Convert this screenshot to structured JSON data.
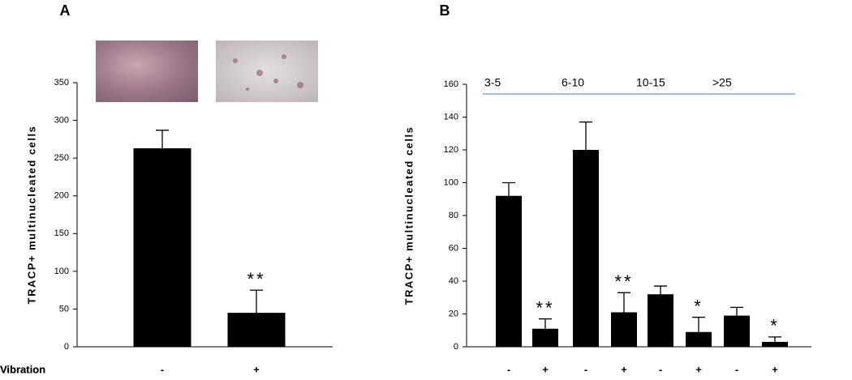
{
  "chart_data": [
    {
      "type": "bar",
      "panel": "A",
      "y_label": "TRACP+ multinucleated cells",
      "x_row_label": "Vibration",
      "categories": [
        "-",
        "+"
      ],
      "values": [
        263,
        45
      ],
      "errors": [
        24,
        30
      ],
      "annotations": [
        null,
        "**"
      ],
      "color": "#000000",
      "ylim": [
        0,
        350
      ],
      "yticks": [
        0,
        50,
        100,
        150,
        200,
        250,
        300,
        350
      ]
    },
    {
      "type": "bar",
      "panel": "B",
      "y_label": "TRACP+ multinucleated cells",
      "x_row_label": "Vibration",
      "categories": [
        "-",
        "+",
        "-",
        "+",
        "-",
        "+",
        "-",
        "+"
      ],
      "values": [
        92,
        11,
        120,
        21,
        32,
        9,
        19,
        3
      ],
      "errors": [
        8,
        6,
        17,
        12,
        5,
        9,
        5,
        3
      ],
      "annotations": [
        null,
        "**",
        null,
        "**",
        null,
        "*",
        null,
        "*"
      ],
      "group_labels": [
        "3-5",
        "6-10",
        "10-15",
        ">25"
      ],
      "group_color": "#4a7ebb",
      "color": "#000000",
      "ylim": [
        0,
        160
      ],
      "yticks": [
        0,
        20,
        40,
        60,
        80,
        100,
        120,
        140,
        160
      ]
    }
  ]
}
